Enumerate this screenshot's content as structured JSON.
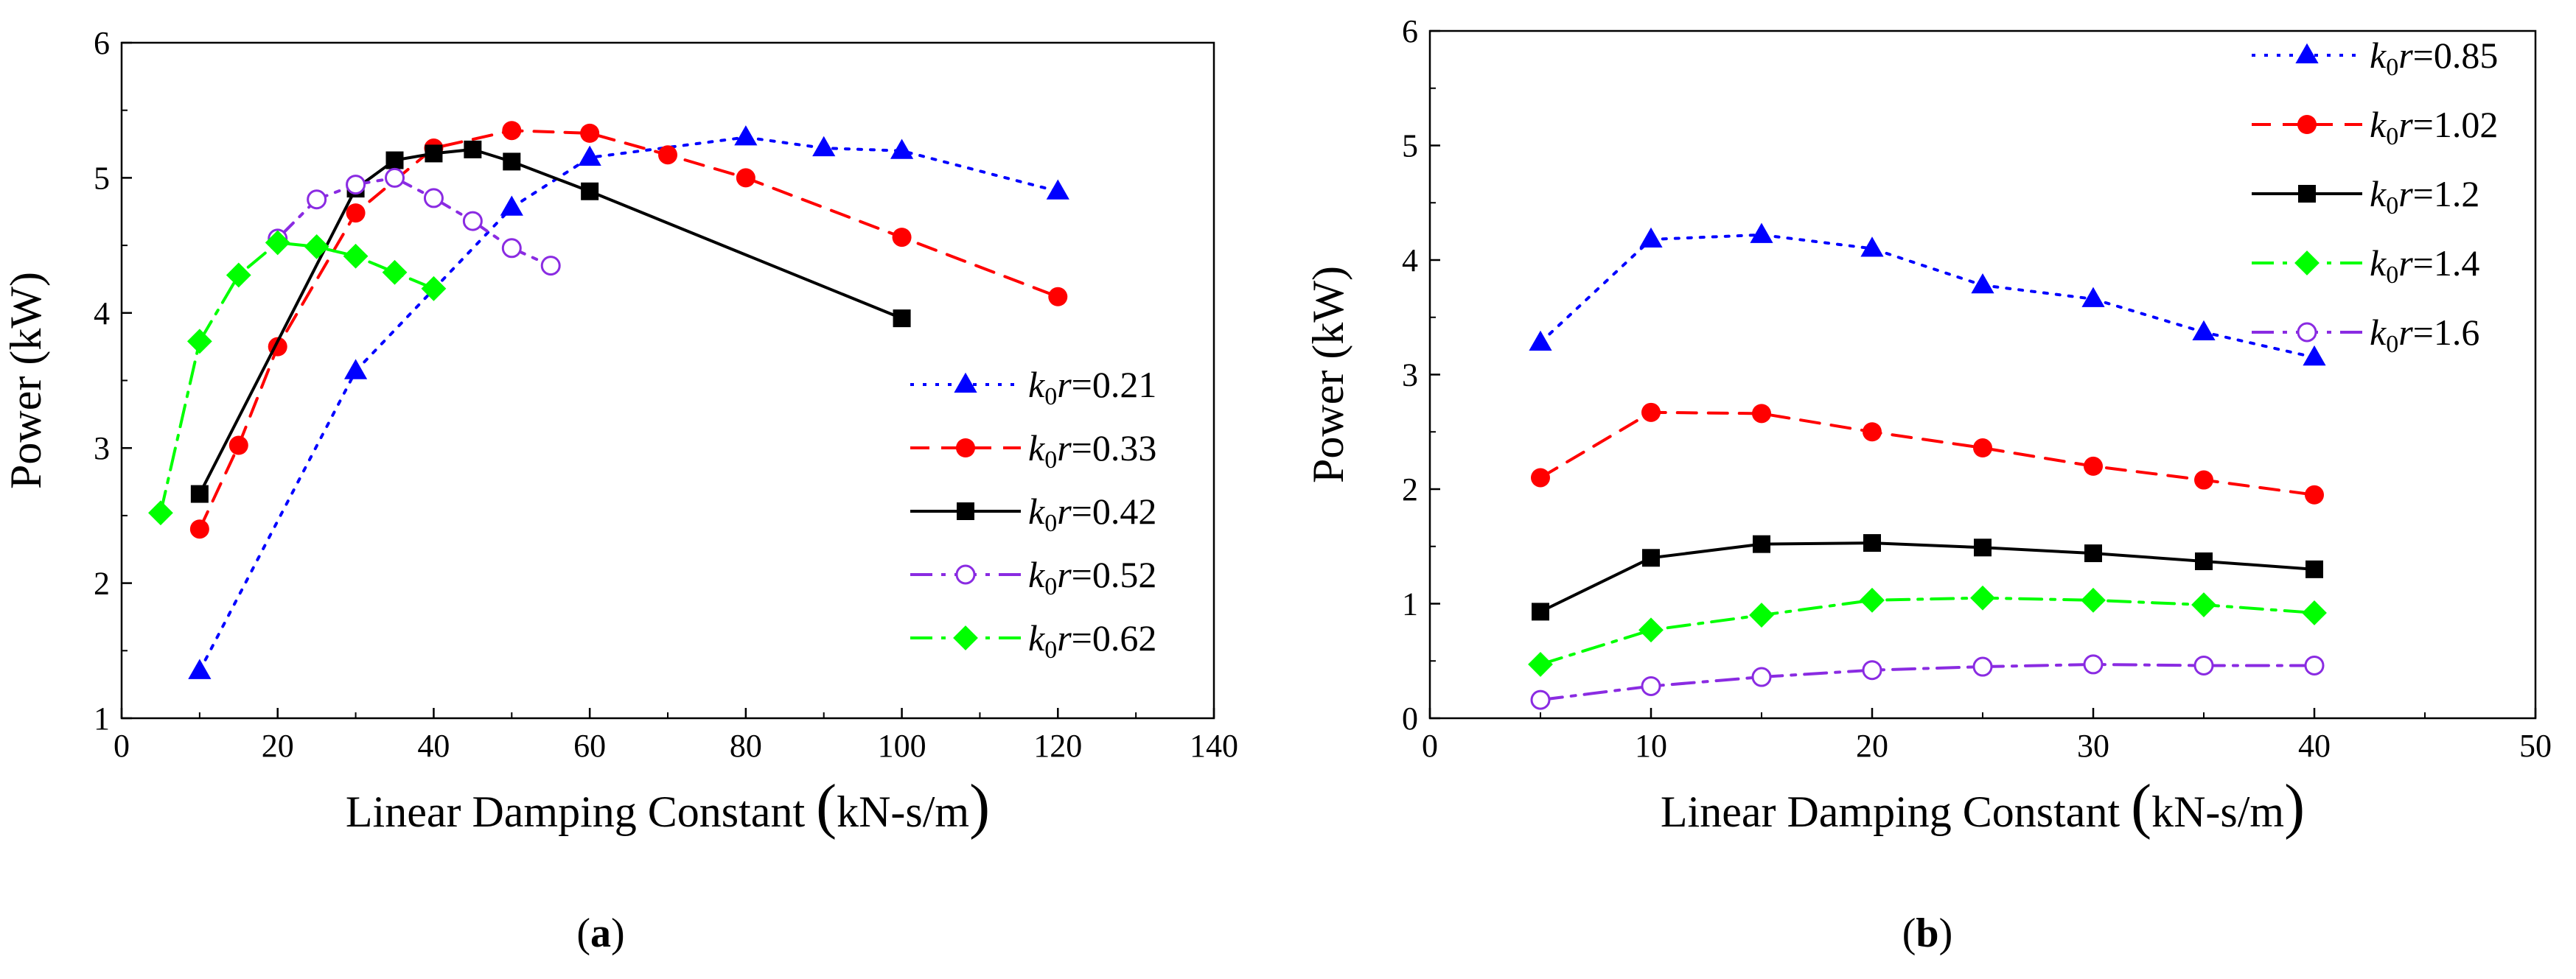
{
  "chart_data": [
    {
      "type": "line",
      "panel": "a",
      "caption": "(a)",
      "caption_letter": "a",
      "xlabel": "Linear Damping Constant",
      "xlabel_unit": "kN-s/m",
      "ylabel": "Power (kW)",
      "xlim": [
        0,
        140
      ],
      "ylim": [
        1,
        6
      ],
      "xticks": [
        0,
        20,
        40,
        60,
        80,
        100,
        120,
        140
      ],
      "yticks": [
        1,
        2,
        3,
        4,
        5,
        6
      ],
      "legend_position": "right",
      "series": [
        {
          "name": "k0r=0.21",
          "value": "0.21",
          "color": "#0000ff",
          "marker": "triangle",
          "dash": "dotted",
          "x": [
            10,
            30,
            50,
            60,
            80,
            90,
            100,
            120
          ],
          "y": [
            1.35,
            3.57,
            4.78,
            5.15,
            5.3,
            5.22,
            5.2,
            4.9
          ]
        },
        {
          "name": "k0r=0.33",
          "value": "0.33",
          "color": "#ff0000",
          "marker": "circle",
          "dash": "dashed",
          "x": [
            10,
            15,
            20,
            30,
            40,
            50,
            60,
            70,
            80,
            100,
            120
          ],
          "y": [
            2.4,
            3.02,
            3.75,
            4.74,
            5.22,
            5.35,
            5.33,
            5.17,
            5.0,
            4.56,
            4.12
          ]
        },
        {
          "name": "k0r=0.42",
          "value": "0.42",
          "color": "#000000",
          "marker": "square",
          "dash": "solid",
          "x": [
            10,
            30,
            35,
            40,
            45,
            50,
            60,
            100
          ],
          "y": [
            2.66,
            4.92,
            5.13,
            5.18,
            5.21,
            5.12,
            4.9,
            3.96
          ]
        },
        {
          "name": "k0r=0.52",
          "value": "0.52",
          "color": "#8a2be2",
          "marker": "open-circle",
          "dash": "dashdot",
          "x": [
            20,
            25,
            30,
            35,
            40,
            45,
            50,
            55
          ],
          "y": [
            4.55,
            4.84,
            4.95,
            5.0,
            4.85,
            4.68,
            4.48,
            4.35
          ]
        },
        {
          "name": "k0r=0.62",
          "value": "0.62",
          "color": "#00ff00",
          "marker": "diamond",
          "dash": "dashdot",
          "x": [
            5,
            10,
            15,
            20,
            25,
            30,
            35,
            40
          ],
          "y": [
            2.52,
            3.79,
            4.28,
            4.52,
            4.49,
            4.42,
            4.3,
            4.18
          ]
        }
      ]
    },
    {
      "type": "line",
      "panel": "b",
      "caption": "(b)",
      "caption_letter": "b",
      "xlabel": "Linear Damping Constant",
      "xlabel_unit": "kN-s/m",
      "ylabel": "Power (kW)",
      "xlim": [
        0,
        50
      ],
      "ylim": [
        0,
        6
      ],
      "xticks": [
        0,
        10,
        20,
        30,
        40,
        50
      ],
      "yticks": [
        0,
        1,
        2,
        3,
        4,
        5,
        6
      ],
      "legend_position": "top-right",
      "series": [
        {
          "name": "k0r=0.85",
          "value": "0.85",
          "color": "#0000ff",
          "marker": "triangle",
          "dash": "dotted",
          "x": [
            5,
            10,
            15,
            20,
            25,
            30,
            35,
            40
          ],
          "y": [
            3.28,
            4.18,
            4.22,
            4.1,
            3.78,
            3.66,
            3.37,
            3.15
          ]
        },
        {
          "name": "k0r=1.02",
          "value": "1.02",
          "color": "#ff0000",
          "marker": "circle",
          "dash": "dashed",
          "x": [
            5,
            10,
            15,
            20,
            25,
            30,
            35,
            40
          ],
          "y": [
            2.1,
            2.67,
            2.66,
            2.5,
            2.36,
            2.2,
            2.08,
            1.95
          ]
        },
        {
          "name": "k0r=1.2",
          "value": "1.2",
          "color": "#000000",
          "marker": "square",
          "dash": "solid",
          "x": [
            5,
            10,
            15,
            20,
            25,
            30,
            35,
            40
          ],
          "y": [
            0.93,
            1.4,
            1.52,
            1.53,
            1.49,
            1.44,
            1.37,
            1.3
          ]
        },
        {
          "name": "k0r=1.4",
          "value": "1.4",
          "color": "#00ff00",
          "marker": "diamond",
          "dash": "dashdot",
          "x": [
            5,
            10,
            15,
            20,
            25,
            30,
            35,
            40
          ],
          "y": [
            0.47,
            0.77,
            0.9,
            1.03,
            1.05,
            1.03,
            0.99,
            0.92
          ]
        },
        {
          "name": "k0r=1.6",
          "value": "1.6",
          "color": "#8a2be2",
          "marker": "open-circle",
          "dash": "dashdot",
          "x": [
            5,
            10,
            15,
            20,
            25,
            30,
            35,
            40
          ],
          "y": [
            0.16,
            0.28,
            0.36,
            0.42,
            0.45,
            0.47,
            0.46,
            0.46
          ]
        }
      ]
    }
  ]
}
